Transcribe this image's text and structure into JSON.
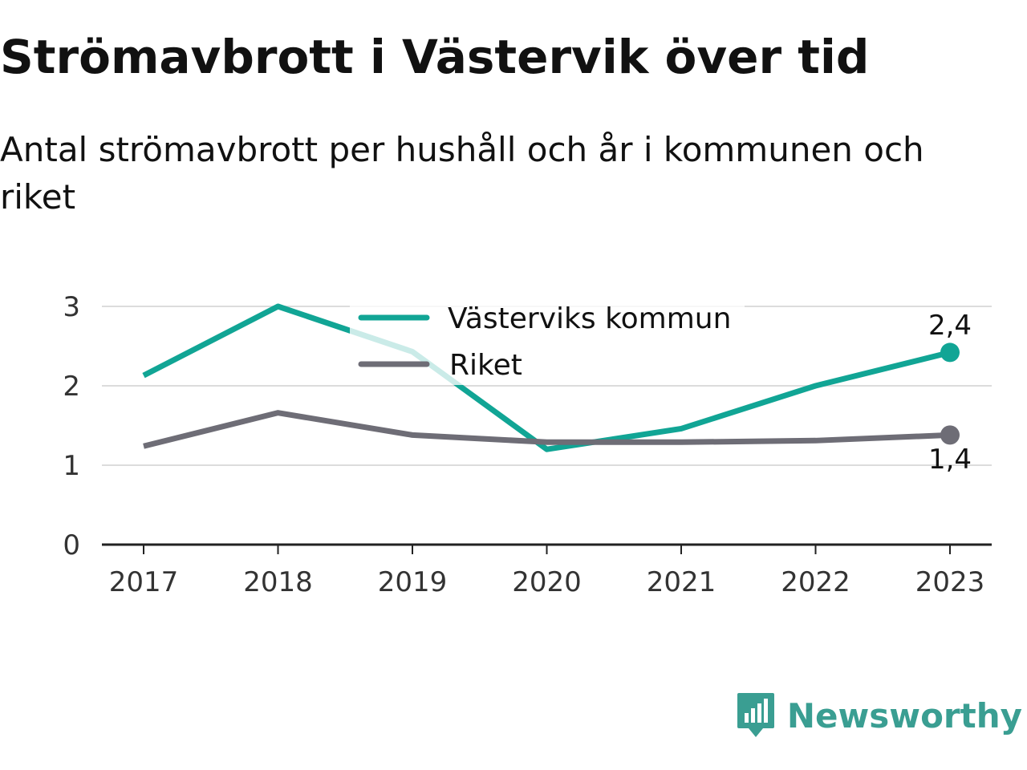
{
  "header": {
    "title": "Strömavbrott i Västervik över tid",
    "subtitle": "Antal strömavbrott per hushåll och år i kommunen och riket"
  },
  "brand": {
    "name": "Newsworthy",
    "icon": "newsworthy-logo-icon",
    "color": "#3a9e92"
  },
  "chart_data": {
    "type": "line",
    "x": [
      "2017",
      "2018",
      "2019",
      "2020",
      "2021",
      "2022",
      "2023"
    ],
    "series": [
      {
        "name": "Västerviks kommun",
        "color": "#11a595",
        "values": [
          2.13,
          3.0,
          2.43,
          1.2,
          1.46,
          2.0,
          2.42
        ]
      },
      {
        "name": "Riket",
        "color": "#6e6d76",
        "values": [
          1.24,
          1.66,
          1.38,
          1.29,
          1.29,
          1.31,
          1.38
        ]
      }
    ],
    "ylim": [
      0,
      3
    ],
    "yticks": [
      "0",
      "1",
      "2",
      "3"
    ],
    "grid": true,
    "legend": "top-center",
    "end_labels": [
      "2,4",
      "1,4"
    ],
    "xlabel": "",
    "ylabel": ""
  }
}
